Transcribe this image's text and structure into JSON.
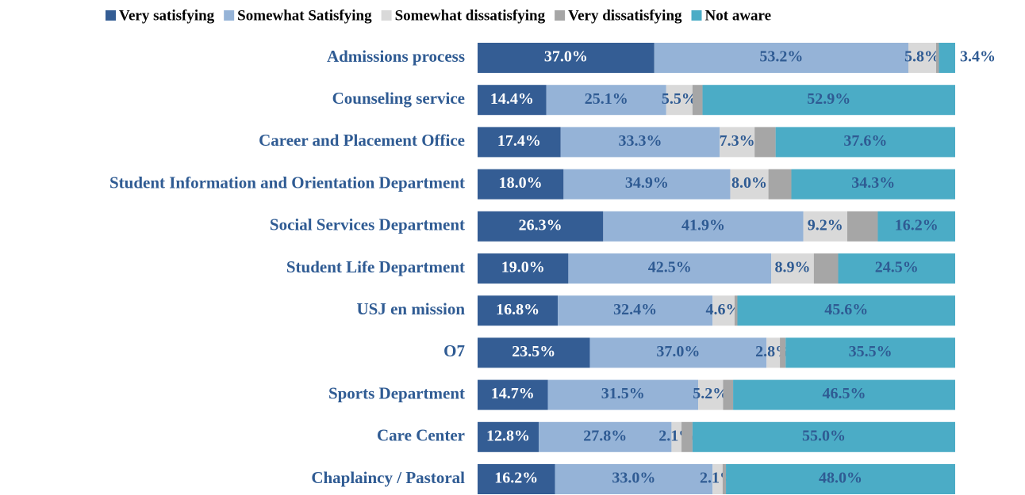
{
  "chart_data": {
    "type": "stacked-bar-horizontal",
    "categories": [
      "Admissions process",
      "Counseling service",
      "Career and Placement Office",
      "Student Information and Orientation Department",
      "Social Services Department",
      "Student Life Department",
      "USJ en mission",
      "O7",
      "Sports Department",
      "Care Center",
      "Chaplaincy / Pastoral"
    ],
    "xlim": [
      0,
      100
    ],
    "legend": "top",
    "series": [
      {
        "name": "Very satisfying",
        "color": "#345d94",
        "label_color": "#ffffff",
        "values": [
          37.0,
          14.4,
          17.4,
          18.0,
          26.3,
          19.0,
          16.8,
          23.5,
          14.7,
          12.8,
          16.2
        ],
        "value_labels": [
          "37.0%",
          "14.4%",
          "17.4%",
          "18.0%",
          "26.3%",
          "19.0%",
          "16.8%",
          "23.5%",
          "14.7%",
          "12.8%",
          "16.2%"
        ]
      },
      {
        "name": "Somewhat Satisfying",
        "color": "#95b3d7",
        "label_color": "#2f5b93",
        "values": [
          53.2,
          25.1,
          33.3,
          34.9,
          41.9,
          42.5,
          32.4,
          37.0,
          31.5,
          27.8,
          33.0
        ],
        "value_labels": [
          "53.2%",
          "25.1%",
          "33.3%",
          "34.9%",
          "41.9%",
          "42.5%",
          "32.4%",
          "37.0%",
          "31.5%",
          "27.8%",
          "33.0%"
        ]
      },
      {
        "name": "Somewhat dissatisfying",
        "color": "#d9d9d9",
        "label_color": "#2f5b93",
        "values": [
          5.8,
          5.5,
          7.3,
          8.0,
          9.2,
          8.9,
          4.6,
          2.8,
          5.2,
          2.1,
          2.1
        ],
        "value_labels": [
          "5.8%",
          "5.5%",
          "7.3%",
          "8.0%",
          "9.2%",
          "8.9%",
          "4.6%",
          "2.8%",
          "5.2%",
          "2.1%",
          "2.1%"
        ]
      },
      {
        "name": "Very dissatisfying",
        "color": "#a6a6a6",
        "label_color": "#2f5b93",
        "values": [
          0.6,
          2.1,
          4.4,
          4.8,
          6.4,
          5.1,
          0.6,
          1.2,
          2.1,
          2.3,
          0.7
        ]
      },
      {
        "name": "Not aware",
        "color": "#4bacc6",
        "label_color": "#2f5b93",
        "values": [
          3.4,
          52.9,
          37.6,
          34.3,
          16.2,
          24.5,
          45.6,
          35.5,
          46.5,
          55.0,
          48.0
        ],
        "value_labels": [
          "3.4%",
          "52.9%",
          "37.6%",
          "34.3%",
          "16.2%",
          "24.5%",
          "45.6%",
          "35.5%",
          "46.5%",
          "55.0%",
          "48.0%"
        ]
      }
    ]
  }
}
